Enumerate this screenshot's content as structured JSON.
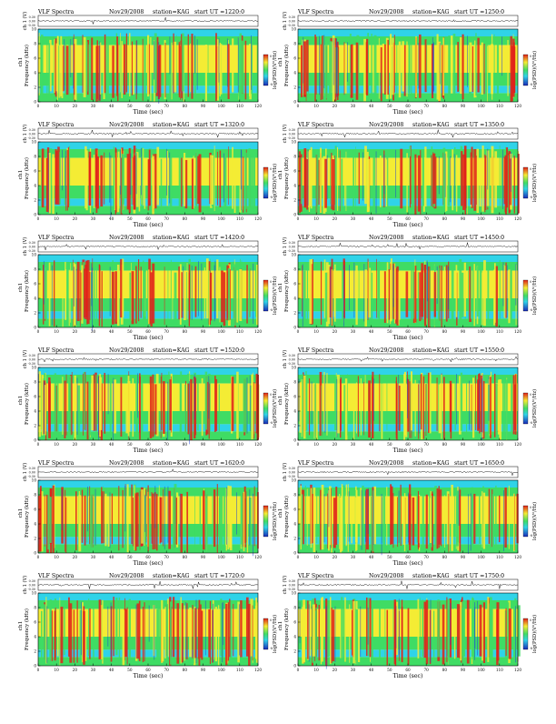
{
  "labels": {
    "prefix": "VLF Spectra",
    "date": "Nov29/2008",
    "station": "station=KAG",
    "start": "start  UT  =",
    "ch_axis": "ch 1 (V)",
    "freq_axis": "Frequency  (kHz)",
    "ch_tag": "ch1",
    "time_axis": "Time  (sec)",
    "colorbar": "log(PSD)(V²/Hz)",
    "cb_ticks": [
      "0",
      "-8"
    ]
  },
  "colors": {
    "band_cyan": "#2fd3e8",
    "band_green": "#3fdc64",
    "band_yellow": "#f4ec34",
    "band_red": "#e0201a",
    "band_blue": "#1d3fd8",
    "colorbar_top": "#e0201a",
    "colorbar_bottom": "#1a2ab8"
  },
  "chart_data": [
    {
      "type": "heatmap",
      "start_ut": "1220:0",
      "waveform_ticks": [
        "0.30",
        "0.00",
        "-0.30"
      ],
      "xlim": [
        0,
        120
      ],
      "ylim": [
        0,
        10
      ],
      "x_ticks": [
        "0",
        "10",
        "20",
        "30",
        "40",
        "50",
        "60",
        "70",
        "80",
        "90",
        "100",
        "110",
        "120"
      ],
      "y_ticks": [
        "10",
        "8",
        "6",
        "4",
        "2",
        "0"
      ]
    },
    {
      "type": "heatmap",
      "start_ut": "1250:0",
      "waveform_ticks": [
        "0.30",
        "0.00",
        "-0.30"
      ],
      "xlim": [
        0,
        120
      ],
      "ylim": [
        0,
        10
      ],
      "x_ticks": [
        "0",
        "10",
        "20",
        "30",
        "40",
        "50",
        "60",
        "70",
        "80",
        "90",
        "100",
        "110",
        "120"
      ],
      "y_ticks": [
        "10",
        "8",
        "6",
        "4",
        "2",
        "0"
      ]
    },
    {
      "type": "heatmap",
      "start_ut": "1320:0",
      "waveform_ticks": [
        "0.30",
        "0.00",
        "-0.30"
      ],
      "xlim": [
        0,
        120
      ],
      "ylim": [
        0,
        10
      ],
      "x_ticks": [
        "0",
        "10",
        "20",
        "30",
        "40",
        "50",
        "60",
        "70",
        "80",
        "90",
        "100",
        "110",
        "120"
      ],
      "y_ticks": [
        "10",
        "8",
        "6",
        "4",
        "2",
        "0"
      ]
    },
    {
      "type": "heatmap",
      "start_ut": "1350:0",
      "waveform_ticks": [
        "0.30",
        "0.00",
        "-0.30"
      ],
      "xlim": [
        0,
        120
      ],
      "ylim": [
        0,
        10
      ],
      "x_ticks": [
        "0",
        "10",
        "20",
        "30",
        "40",
        "50",
        "60",
        "70",
        "80",
        "90",
        "100",
        "110",
        "120"
      ],
      "y_ticks": [
        "10",
        "8",
        "6",
        "4",
        "2",
        "0"
      ]
    },
    {
      "type": "heatmap",
      "start_ut": "1420:0",
      "waveform_ticks": [
        "0.30",
        "0.00",
        "-0.30"
      ],
      "xlim": [
        0,
        120
      ],
      "ylim": [
        0,
        10
      ],
      "x_ticks": [
        "0",
        "10",
        "20",
        "30",
        "40",
        "50",
        "60",
        "70",
        "80",
        "90",
        "100",
        "110",
        "120"
      ],
      "y_ticks": [
        "10",
        "8",
        "6",
        "4",
        "2",
        "0"
      ]
    },
    {
      "type": "heatmap",
      "start_ut": "1450:0",
      "waveform_ticks": [
        "0.30",
        "0.00",
        "-0.30"
      ],
      "xlim": [
        0,
        120
      ],
      "ylim": [
        0,
        10
      ],
      "x_ticks": [
        "0",
        "10",
        "20",
        "30",
        "40",
        "50",
        "60",
        "70",
        "80",
        "90",
        "100",
        "110",
        "120"
      ],
      "y_ticks": [
        "10",
        "8",
        "6",
        "4",
        "2",
        "0"
      ]
    },
    {
      "type": "heatmap",
      "start_ut": "1520:0",
      "waveform_ticks": [
        "0.30",
        "0.00",
        "-0.30"
      ],
      "xlim": [
        0,
        120
      ],
      "ylim": [
        0,
        10
      ],
      "x_ticks": [
        "0",
        "10",
        "20",
        "30",
        "40",
        "50",
        "60",
        "70",
        "80",
        "90",
        "100",
        "110",
        "120"
      ],
      "y_ticks": [
        "10",
        "8",
        "6",
        "4",
        "2",
        "0"
      ]
    },
    {
      "type": "heatmap",
      "start_ut": "1550:0",
      "waveform_ticks": [
        "0.30",
        "0.00",
        "-0.30"
      ],
      "xlim": [
        0,
        120
      ],
      "ylim": [
        0,
        10
      ],
      "x_ticks": [
        "0",
        "10",
        "20",
        "30",
        "40",
        "50",
        "60",
        "70",
        "80",
        "90",
        "100",
        "110",
        "120"
      ],
      "y_ticks": [
        "10",
        "8",
        "6",
        "4",
        "2",
        "0"
      ]
    },
    {
      "type": "heatmap",
      "start_ut": "1620:0",
      "waveform_ticks": [
        "0.30",
        "0.00",
        "-0.30"
      ],
      "xlim": [
        0,
        120
      ],
      "ylim": [
        0,
        10
      ],
      "x_ticks": [
        "0",
        "10",
        "20",
        "30",
        "40",
        "50",
        "60",
        "70",
        "80",
        "90",
        "100",
        "110",
        "120"
      ],
      "y_ticks": [
        "10",
        "8",
        "6",
        "4",
        "2",
        "0"
      ]
    },
    {
      "type": "heatmap",
      "start_ut": "1650:0",
      "waveform_ticks": [
        "0.30",
        "0.00",
        "-0.30"
      ],
      "xlim": [
        0,
        120
      ],
      "ylim": [
        0,
        10
      ],
      "x_ticks": [
        "0",
        "10",
        "20",
        "30",
        "40",
        "50",
        "60",
        "70",
        "80",
        "90",
        "100",
        "110",
        "120"
      ],
      "y_ticks": [
        "10",
        "8",
        "6",
        "4",
        "2",
        "0"
      ]
    },
    {
      "type": "heatmap",
      "start_ut": "1720:0",
      "waveform_ticks": [
        "0.30",
        "0.00",
        "-0.30"
      ],
      "xlim": [
        0,
        120
      ],
      "ylim": [
        0,
        10
      ],
      "x_ticks": [
        "0",
        "10",
        "20",
        "30",
        "40",
        "50",
        "60",
        "70",
        "80",
        "90",
        "100",
        "110",
        "120"
      ],
      "y_ticks": [
        "10",
        "8",
        "6",
        "4",
        "2",
        "0"
      ]
    },
    {
      "type": "heatmap",
      "start_ut": "1750:0",
      "waveform_ticks": [
        "0.30",
        "0.00",
        "-0.30"
      ],
      "xlim": [
        0,
        120
      ],
      "ylim": [
        0,
        10
      ],
      "x_ticks": [
        "0",
        "10",
        "20",
        "30",
        "40",
        "50",
        "60",
        "70",
        "80",
        "90",
        "100",
        "110",
        "120"
      ],
      "y_ticks": [
        "10",
        "8",
        "6",
        "4",
        "2",
        "0"
      ]
    }
  ]
}
